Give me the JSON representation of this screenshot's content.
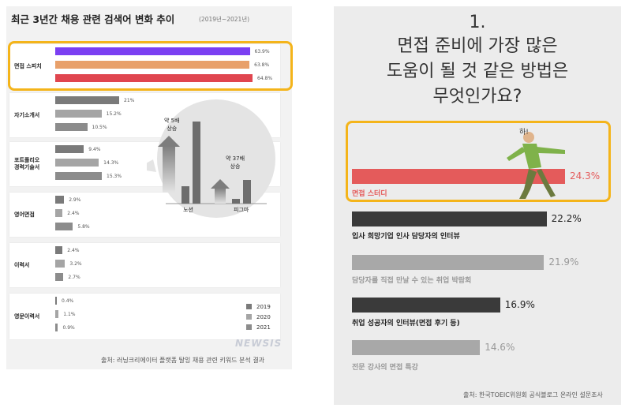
{
  "left": {
    "title": "최근 3년간 채용 관련 검색어 변화 추이",
    "subtitle": "(2019년~2021년)",
    "source": "출처: 러닝크리에이터 플랫폼 탈잉 채용 관련 키워드 분석 결과",
    "watermark": "NEWSIS",
    "legend": [
      "2019",
      "2020",
      "2021"
    ],
    "callout": {
      "bar1_label": "노션",
      "bar1_note": "약 5배\n상승",
      "bar2_label": "피그마",
      "bar2_note": "약 37배\n상승"
    }
  },
  "right": {
    "title_lines": [
      "1.",
      "면접 준비에 가장 많은",
      "도움이 될 것 같은 방법은",
      "무엇인가요?"
    ],
    "source": "출처: 한국TOEIC위원회 공식블로그 온라인 설문조사",
    "exclaim": "하!"
  },
  "colors": {
    "highlight": "#f4b41a",
    "left_series": [
      "#7b3ff2",
      "#e8a06a",
      "#e0464f"
    ],
    "gray_series": [
      "#7a7a7a",
      "#a5a5a5",
      "#8c8c8c"
    ],
    "right_top": "#e45b5b",
    "right_dark": "#3a3a3a",
    "right_light": "#a8a8a8"
  },
  "chart_data": [
    {
      "type": "bar",
      "orientation": "horizontal",
      "title": "최근 3년간 채용 관련 검색어 변화 추이",
      "subtitle": "(2019년~2021년)",
      "categories": [
        "면접 스피치",
        "자기소개서",
        "포트폴리오 경력기술서",
        "영어면접",
        "이력서",
        "영문이력서"
      ],
      "series": [
        {
          "name": "2019",
          "values": [
            63.9,
            21,
            9.4,
            2.9,
            2.4,
            0.4
          ]
        },
        {
          "name": "2020",
          "values": [
            63.8,
            15.2,
            14.3,
            2.4,
            3.2,
            1.1
          ]
        },
        {
          "name": "2021",
          "values": [
            64.8,
            10.5,
            15.3,
            5.8,
            2.7,
            0.9
          ]
        }
      ],
      "labels": [
        [
          "63.9%",
          "63.8%",
          "64.8%"
        ],
        [
          "21%",
          "15.2%",
          "10.5%"
        ],
        [
          "9.4%",
          "14.3%",
          "15.3%"
        ],
        [
          "2.9%",
          "2.4%",
          "5.8%"
        ],
        [
          "2.4%",
          "3.2%",
          "2.7%"
        ],
        [
          "0.4%",
          "1.1%",
          "0.9%"
        ]
      ],
      "unit": "%",
      "legend": "bottom-right"
    },
    {
      "type": "bar",
      "orientation": "horizontal",
      "title": "면접 준비에 가장 많은 도움이 될 것 같은 방법은 무엇인가요?",
      "categories": [
        "면접 스터디",
        "입사 희망기업 인사 담당자의 인터뷰",
        "담당자를 직접 만날 수 있는 취업 박람회",
        "취업 성공자의 인터뷰(면접 후기 등)",
        "전문 강사의 면접 특강"
      ],
      "values": [
        24.3,
        22.2,
        21.9,
        16.9,
        14.6
      ],
      "labels": [
        "24.3%",
        "22.2%",
        "21.9%",
        "16.9%",
        "14.6%"
      ],
      "unit": "%"
    }
  ]
}
